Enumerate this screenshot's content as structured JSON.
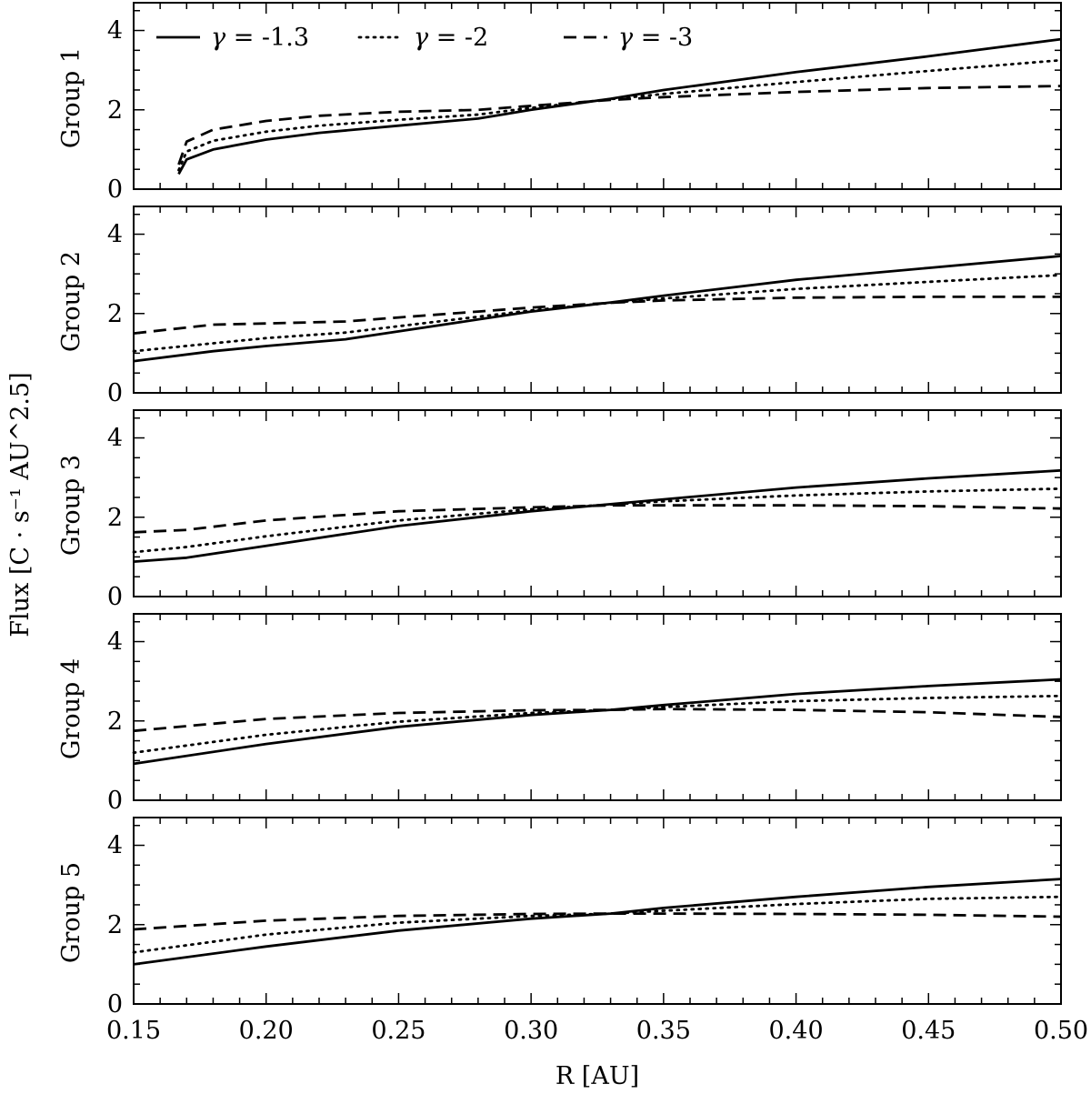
{
  "chart_data": {
    "type": "line",
    "x_label": "R [AU]",
    "y_label": "Flux [C · s⁻¹ AU^2.5]",
    "x_ticks": [
      "0.15",
      "0.20",
      "0.25",
      "0.30",
      "0.35",
      "0.40",
      "0.45",
      "0.50"
    ],
    "y_ticks": [
      "0",
      "2",
      "4"
    ],
    "xlim": [
      0.15,
      0.5
    ],
    "ylim": [
      0,
      4.7
    ],
    "legend": [
      {
        "gamma_symbol": "γ",
        "value_text": "= -1.3",
        "style": "solid"
      },
      {
        "gamma_symbol": "γ",
        "value_text": "= -2",
        "style": "dotted"
      },
      {
        "gamma_symbol": "γ",
        "value_text": "= -3",
        "style": "dashed"
      }
    ],
    "line_color": "#000000",
    "panels": [
      {
        "label": "Group 1",
        "x": [
          0.167,
          0.17,
          0.18,
          0.2,
          0.22,
          0.25,
          0.28,
          0.3,
          0.33,
          0.35,
          0.4,
          0.45,
          0.5
        ],
        "series": [
          {
            "style": "solid",
            "values": [
              0.38,
              0.75,
              1.0,
              1.25,
              1.42,
              1.6,
              1.78,
              2.0,
              2.28,
              2.5,
              2.95,
              3.35,
              3.78
            ]
          },
          {
            "style": "dotted",
            "values": [
              0.48,
              0.95,
              1.22,
              1.45,
              1.6,
              1.75,
              1.88,
              2.05,
              2.27,
              2.4,
              2.7,
              2.98,
              3.25
            ]
          },
          {
            "style": "dashed",
            "values": [
              0.62,
              1.2,
              1.5,
              1.72,
              1.85,
              1.95,
              2.0,
              2.1,
              2.25,
              2.32,
              2.45,
              2.55,
              2.6
            ]
          }
        ]
      },
      {
        "label": "Group 2",
        "x": [
          0.15,
          0.18,
          0.2,
          0.23,
          0.25,
          0.28,
          0.3,
          0.33,
          0.35,
          0.4,
          0.45,
          0.5
        ],
        "series": [
          {
            "style": "solid",
            "values": [
              0.8,
              1.05,
              1.18,
              1.35,
              1.55,
              1.85,
              2.05,
              2.28,
              2.45,
              2.85,
              3.15,
              3.45
            ]
          },
          {
            "style": "dotted",
            "values": [
              1.05,
              1.25,
              1.38,
              1.52,
              1.68,
              1.92,
              2.08,
              2.27,
              2.38,
              2.62,
              2.8,
              2.97
            ]
          },
          {
            "style": "dashed",
            "values": [
              1.5,
              1.72,
              1.75,
              1.8,
              1.9,
              2.05,
              2.15,
              2.27,
              2.33,
              2.4,
              2.42,
              2.42
            ]
          }
        ]
      },
      {
        "label": "Group 3",
        "x": [
          0.15,
          0.17,
          0.2,
          0.25,
          0.3,
          0.33,
          0.35,
          0.4,
          0.45,
          0.5
        ],
        "series": [
          {
            "style": "solid",
            "values": [
              0.88,
              0.98,
              1.28,
              1.78,
              2.15,
              2.33,
              2.45,
              2.75,
              2.98,
              3.18
            ]
          },
          {
            "style": "dotted",
            "values": [
              1.12,
              1.25,
              1.52,
              1.92,
              2.2,
              2.32,
              2.4,
              2.55,
              2.65,
              2.72
            ]
          },
          {
            "style": "dashed",
            "values": [
              1.62,
              1.68,
              1.92,
              2.15,
              2.25,
              2.3,
              2.3,
              2.3,
              2.28,
              2.22
            ]
          }
        ]
      },
      {
        "label": "Group 4",
        "x": [
          0.15,
          0.2,
          0.25,
          0.3,
          0.33,
          0.35,
          0.4,
          0.45,
          0.5
        ],
        "series": [
          {
            "style": "solid",
            "values": [
              0.92,
              1.42,
              1.85,
              2.15,
              2.28,
              2.4,
              2.68,
              2.88,
              3.05
            ]
          },
          {
            "style": "dotted",
            "values": [
              1.2,
              1.65,
              1.98,
              2.2,
              2.28,
              2.35,
              2.5,
              2.58,
              2.63
            ]
          },
          {
            "style": "dashed",
            "values": [
              1.75,
              2.05,
              2.2,
              2.27,
              2.28,
              2.3,
              2.28,
              2.22,
              2.1
            ]
          }
        ]
      },
      {
        "label": "Group 5",
        "x": [
          0.15,
          0.2,
          0.25,
          0.3,
          0.33,
          0.35,
          0.4,
          0.45,
          0.5
        ],
        "series": [
          {
            "style": "solid",
            "values": [
              1.0,
              1.45,
              1.85,
              2.15,
              2.28,
              2.42,
              2.7,
              2.95,
              3.15
            ]
          },
          {
            "style": "dotted",
            "values": [
              1.3,
              1.75,
              2.05,
              2.22,
              2.28,
              2.35,
              2.52,
              2.65,
              2.7
            ]
          },
          {
            "style": "dashed",
            "values": [
              1.88,
              2.1,
              2.22,
              2.27,
              2.28,
              2.28,
              2.27,
              2.25,
              2.2
            ]
          }
        ]
      }
    ]
  }
}
